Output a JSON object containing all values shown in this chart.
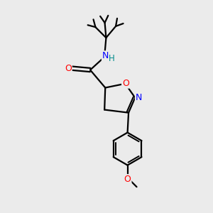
{
  "background_color": "#ebebeb",
  "bond_color": "#000000",
  "atom_colors": {
    "O": "#ff0000",
    "N": "#0000ff",
    "H": "#008b8b",
    "C": "#000000"
  },
  "figsize": [
    3.0,
    3.0
  ],
  "dpi": 100
}
